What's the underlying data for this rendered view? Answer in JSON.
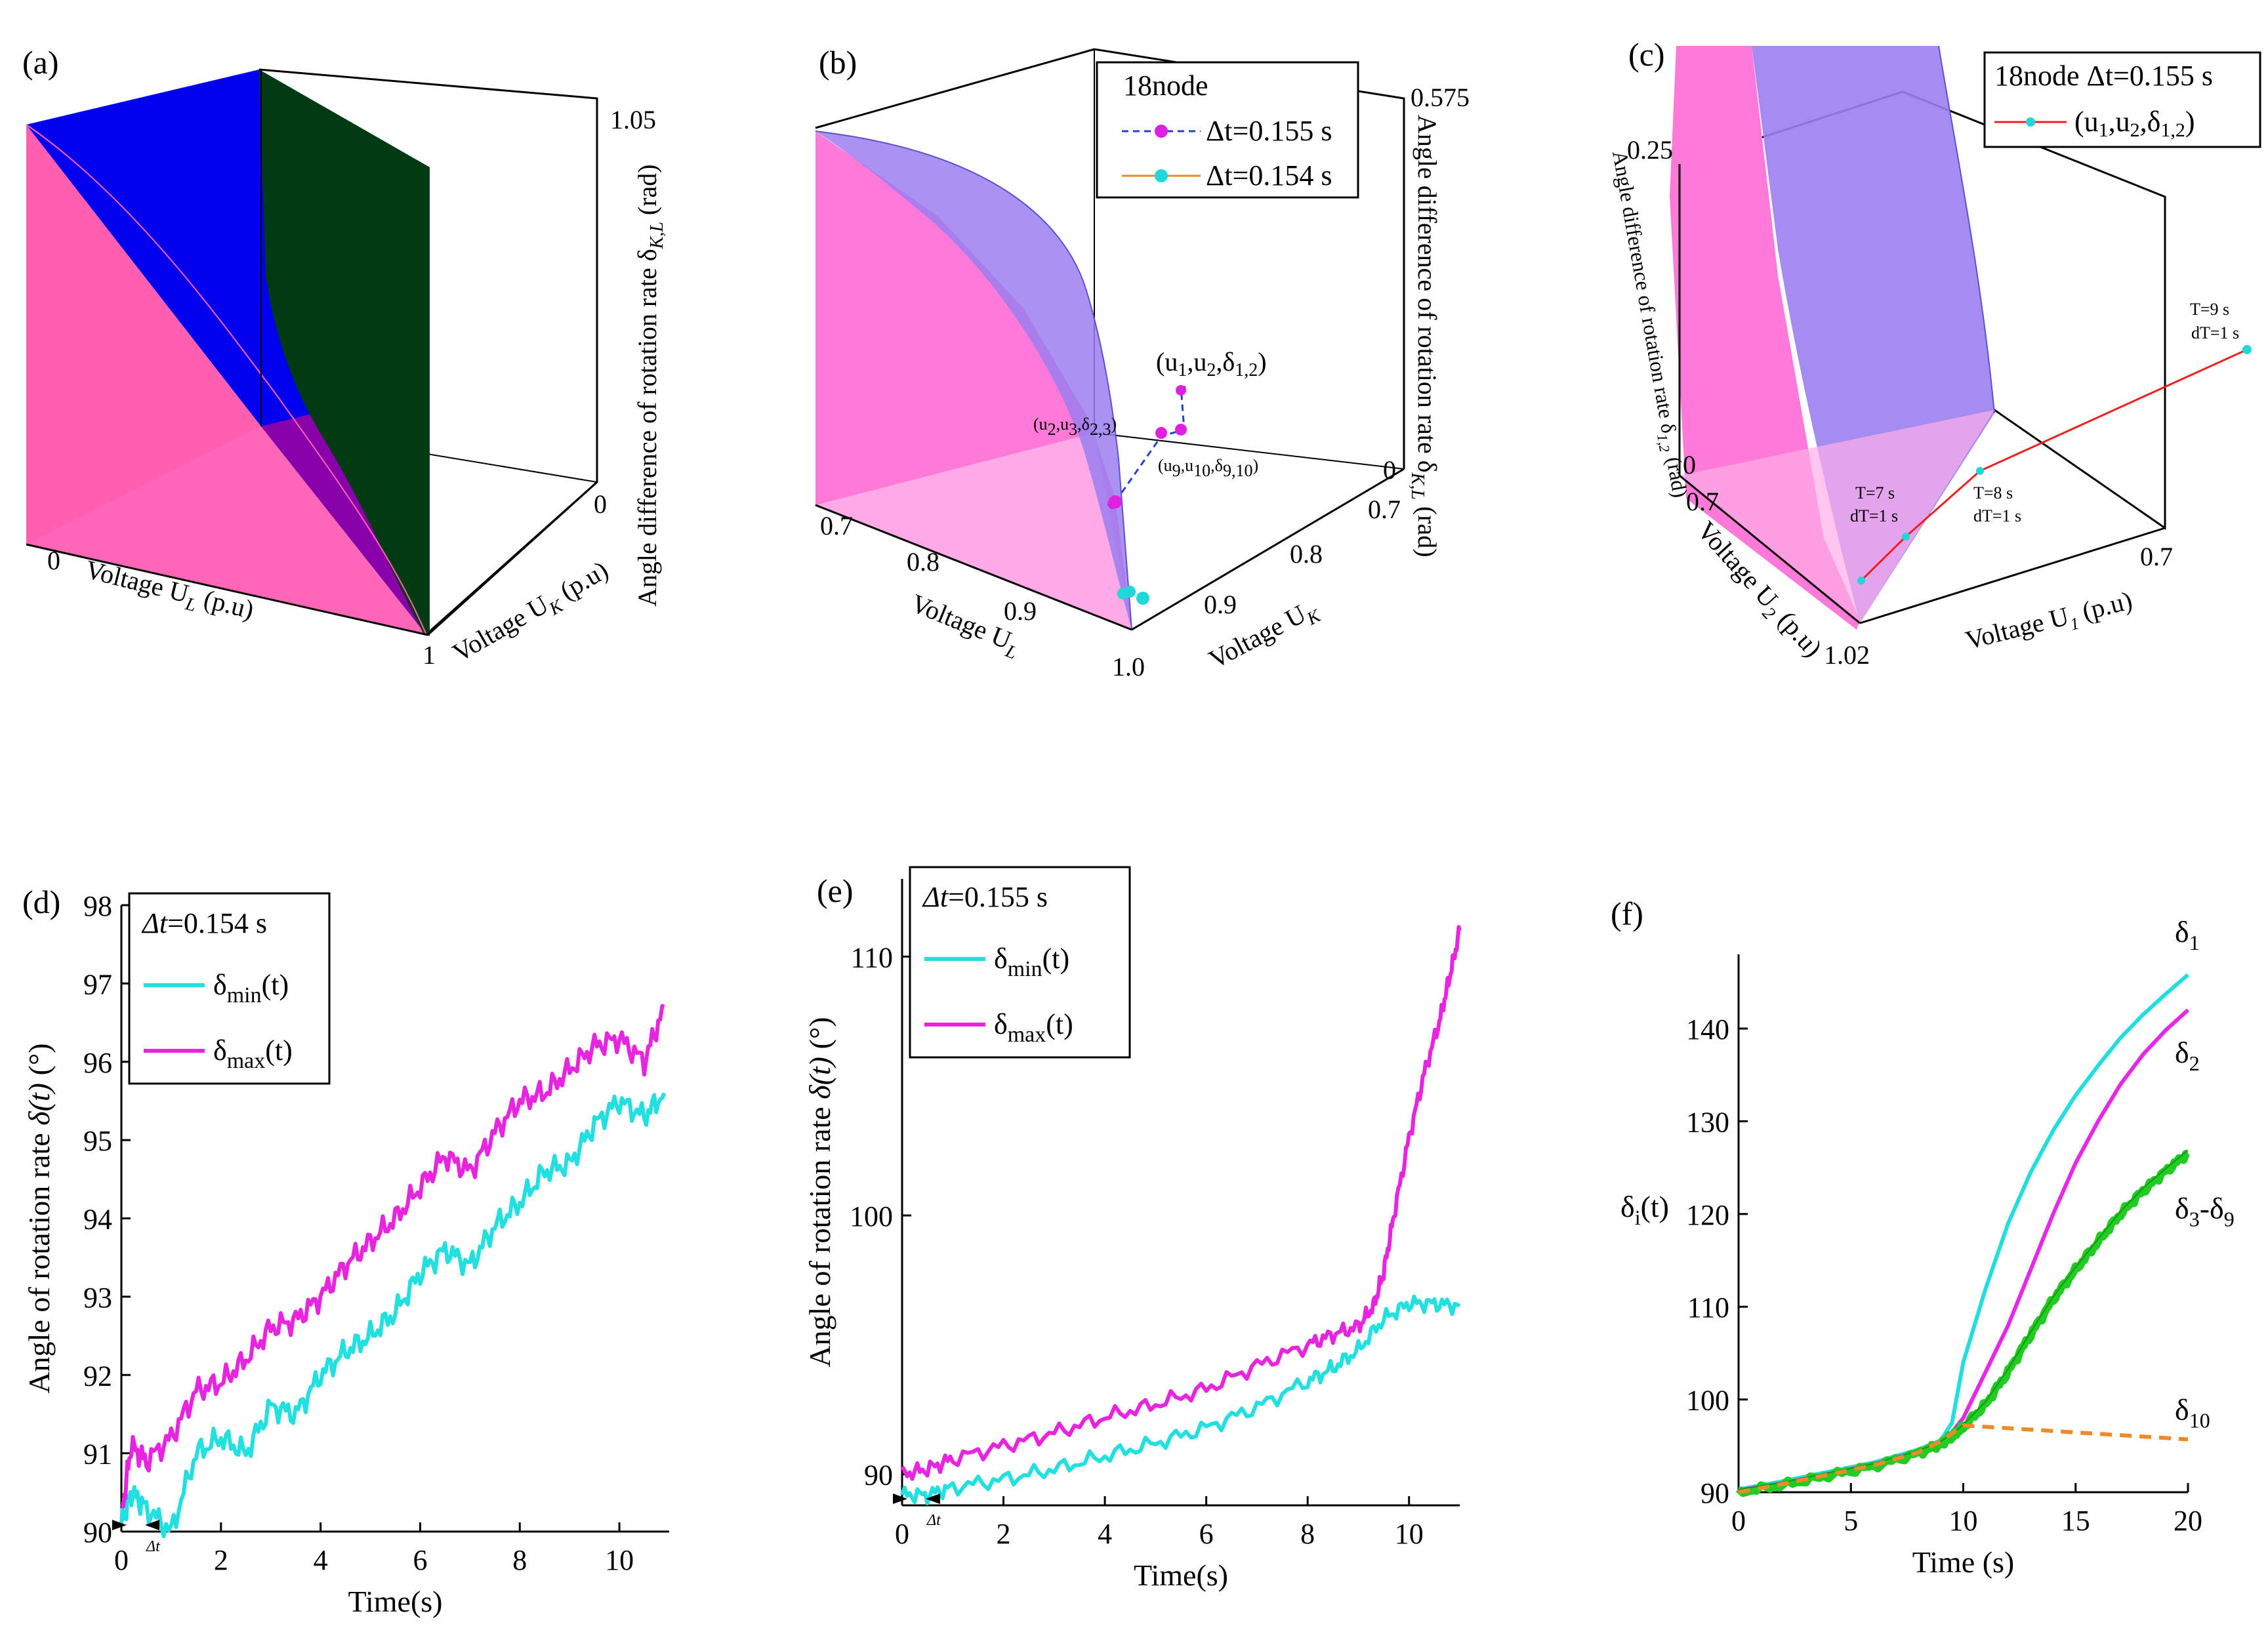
{
  "panels": {
    "a": {
      "label": "(a)",
      "zlabel": "Angle difference of rotation rate δ",
      "zlabel_sub": "K,L",
      "zlabel_unit": "(rad)",
      "xlabel": "Voltage U",
      "xlabel_sub": "L",
      "xlabel_unit": "(p.u)",
      "ylabel": "Voltage U",
      "ylabel_sub": "K",
      "ylabel_unit": "(p.u)",
      "z_top": "1.05",
      "x_min": "0",
      "x_max": "1",
      "y_min": "0"
    },
    "b": {
      "label": "(b)",
      "zlabel": "Angle difference of rotation rate δ",
      "zlabel_sub": "K,L",
      "zlabel_unit": "(rad)",
      "xlabel": "Voltage U",
      "xlabel_sub": "L",
      "ylabel": "Voltage U",
      "ylabel_sub": "K",
      "z_top": "0.575",
      "z_bot": "0",
      "x_ticks": [
        "0.7",
        "0.8",
        "0.9",
        "1.0"
      ],
      "y_ticks": [
        "0.9",
        "0.8",
        "0.7"
      ],
      "legend_title": "18node",
      "legend": [
        {
          "name": "Δt=0.155 s",
          "color": "#e020e0"
        },
        {
          "name": "Δt=0.154 s",
          "color": "#20d8d8"
        }
      ],
      "ann1": "(u",
      "ann1_parts": [
        "(u",
        "1",
        ",u",
        "2",
        ",δ",
        "1,2",
        ")"
      ],
      "ann2_parts": [
        "(u",
        "2",
        ",u",
        "3",
        ",δ",
        "2,3",
        ")"
      ],
      "ann3_parts": [
        "(u",
        "9",
        ",u",
        "10",
        ",δ",
        "9,10",
        ")"
      ]
    },
    "c": {
      "label": "(c)",
      "zlabel": "Angle difference of rotation rate δ",
      "zlabel_sub": "1,2",
      "zlabel_unit": "(rad)",
      "xlabel": "Voltage U",
      "xlabel_sub": "2",
      "xlabel_unit": "(p.u)",
      "ylabel": "Voltage U",
      "ylabel_sub": "1",
      "ylabel_unit": "(p.u)",
      "z_top": "0.25",
      "z_bot": "0",
      "x_top": "0.7",
      "x_bot": "1.02",
      "y_tick": "0.7",
      "legend_title": "18node Δt=0.155 s",
      "legend_parts": [
        "(u",
        "1",
        ",u",
        "2",
        ",δ",
        "1,2",
        ")"
      ],
      "pts": [
        {
          "t": "T=7 s",
          "dt": "dT=1 s"
        },
        {
          "t": "T=8 s",
          "dt": "dT=1 s"
        },
        {
          "t": "T=9 s",
          "dt": "dT=1 s"
        }
      ]
    },
    "d": {
      "label": "(d)"
    },
    "e": {
      "label": "(e)"
    },
    "f": {
      "label": "(f)"
    }
  },
  "chart_data": [
    {
      "id": "d",
      "type": "line",
      "legend_title": "Δt=0.154 s",
      "legend_title_parts": [
        "Δt",
        "=0.154 s"
      ],
      "xlabel": "Time(s)",
      "ylabel": "Angle of rotation rate δ(t) (°)",
      "ylabel_parts": [
        "Angle of rotation rate ",
        "δ(t)",
        " (°)"
      ],
      "xlim": [
        0,
        11
      ],
      "ylim": [
        90,
        98
      ],
      "x_ticks": [
        0,
        2,
        4,
        6,
        8,
        10
      ],
      "y_ticks": [
        90,
        91,
        92,
        93,
        94,
        95,
        96,
        97,
        98
      ],
      "marker_label": "Δt",
      "series": [
        {
          "name": "δmin(t)",
          "base": "δ",
          "sub": "min",
          "suffix": "(t)",
          "color": "#22e0e0",
          "x": [
            0,
            0.2,
            0.5,
            1.0,
            1.5,
            2.0,
            2.5,
            3.0,
            3.5,
            4.0,
            4.5,
            5.0,
            5.5,
            6.0,
            6.5,
            7.0,
            7.5,
            8.0,
            8.5,
            9.0,
            9.5,
            10.0,
            10.5,
            10.9
          ],
          "y": [
            90.1,
            90.5,
            90.3,
            90.0,
            91.0,
            91.2,
            91.0,
            91.6,
            91.5,
            92.0,
            92.3,
            92.5,
            92.8,
            93.3,
            93.6,
            93.4,
            93.9,
            94.2,
            94.6,
            94.7,
            95.2,
            95.5,
            95.3,
            95.6
          ]
        },
        {
          "name": "δmax(t)",
          "base": "δ",
          "sub": "max",
          "suffix": "(t)",
          "color": "#e824e0",
          "x": [
            0,
            0.2,
            0.5,
            1.0,
            1.5,
            2.0,
            2.5,
            3.0,
            3.5,
            4.0,
            4.5,
            5.0,
            5.5,
            6.0,
            6.5,
            7.0,
            7.5,
            8.0,
            8.5,
            9.0,
            9.5,
            10.0,
            10.5,
            10.9
          ],
          "y": [
            90.2,
            91.1,
            90.9,
            91.2,
            91.8,
            91.9,
            92.2,
            92.6,
            92.7,
            93.0,
            93.4,
            93.7,
            94.0,
            94.4,
            94.8,
            94.6,
            95.1,
            95.5,
            95.6,
            95.9,
            96.2,
            96.3,
            96.0,
            96.7
          ]
        }
      ]
    },
    {
      "id": "e",
      "type": "line",
      "legend_title": "Δt=0.155 s",
      "legend_title_parts": [
        "Δt",
        "=0.155 s"
      ],
      "xlabel": "Time(s)",
      "ylabel": "Angle of rotation rate δ(t) (°)",
      "ylabel_parts": [
        "Angle of rotation rate ",
        "δ(t)",
        " (°)"
      ],
      "xlim": [
        0,
        11
      ],
      "ylim": [
        88.8,
        113
      ],
      "x_ticks": [
        0,
        2,
        4,
        6,
        8,
        10
      ],
      "y_ticks": [
        90,
        100,
        110
      ],
      "marker_label": "Δt",
      "series": [
        {
          "name": "δmin(t)",
          "base": "δ",
          "sub": "min",
          "suffix": "(t)",
          "color": "#22e0e0",
          "x": [
            0,
            0.5,
            1.0,
            2.0,
            3.0,
            4.0,
            5.0,
            6.0,
            7.0,
            8.0,
            8.5,
            9.0,
            9.5,
            10.0,
            10.5,
            11.0
          ],
          "y": [
            89.2,
            89.2,
            89.5,
            89.8,
            90.2,
            90.7,
            91.2,
            91.8,
            92.6,
            93.6,
            94.1,
            94.8,
            96.0,
            96.6,
            96.6,
            96.5
          ]
        },
        {
          "name": "δmax(t)",
          "base": "δ",
          "sub": "max",
          "suffix": "(t)",
          "color": "#e824e0",
          "x": [
            0,
            0.5,
            1.0,
            2.0,
            3.0,
            4.0,
            5.0,
            6.0,
            7.0,
            8.0,
            8.5,
            9.0,
            9.3,
            9.5,
            9.7,
            10.0,
            10.3,
            10.6,
            10.8,
            11.0
          ],
          "y": [
            90.0,
            90.2,
            90.6,
            91.1,
            91.6,
            92.2,
            92.7,
            93.3,
            94.2,
            95.0,
            95.4,
            95.7,
            96.5,
            97.8,
            100.0,
            103.0,
            105.5,
            107.5,
            109.2,
            111.0
          ]
        }
      ]
    },
    {
      "id": "f",
      "type": "line",
      "xlabel": "Time (s)",
      "ylabel": "δi(t)",
      "ylabel_parts": [
        "δ",
        "i",
        "(t)"
      ],
      "xlim": [
        0,
        20
      ],
      "ylim": [
        90,
        148
      ],
      "x_ticks": [
        0,
        5,
        10,
        15,
        20
      ],
      "y_ticks": [
        90,
        100,
        110,
        120,
        130,
        140
      ],
      "series": [
        {
          "name": "δ1",
          "base": "δ",
          "sub": "1",
          "color": "#22dede",
          "x": [
            0,
            2,
            4,
            6,
            8,
            9,
            9.5,
            10,
            11,
            12,
            13,
            14,
            15,
            16,
            17,
            18,
            19,
            20
          ],
          "y": [
            90.3,
            91.2,
            92.2,
            93.2,
            94.6,
            95.6,
            97.5,
            104.0,
            112.0,
            119.0,
            124.5,
            129.0,
            132.8,
            136.0,
            139.0,
            141.5,
            143.7,
            145.8
          ]
        },
        {
          "name": "δ2",
          "base": "δ",
          "sub": "2",
          "color": "#e828e8",
          "x": [
            0,
            2,
            4,
            6,
            8,
            9,
            9.5,
            10,
            11,
            12,
            13,
            14,
            15,
            16,
            17,
            18,
            19,
            20
          ],
          "y": [
            90.2,
            91.0,
            92.0,
            93.0,
            94.4,
            95.4,
            96.5,
            98.0,
            103.0,
            108.0,
            114.0,
            120.0,
            125.5,
            130.0,
            134.0,
            137.2,
            139.8,
            142.0
          ]
        },
        {
          "name": "δ3-δ9",
          "base": "δ",
          "sub": "3",
          "mid": "-δ",
          "sub2": "9",
          "color": "#22cc22",
          "x": [
            0,
            2,
            4,
            6,
            8,
            9,
            9.5,
            10,
            11,
            12,
            13,
            14,
            15,
            16,
            17,
            18,
            19,
            20
          ],
          "y": [
            90.0,
            90.8,
            91.8,
            92.8,
            94.2,
            95.2,
            96.0,
            97.0,
            99.5,
            103.0,
            107.0,
            110.8,
            114.0,
            117.0,
            120.0,
            122.5,
            124.6,
            126.6
          ]
        },
        {
          "name": "δ10",
          "base": "δ",
          "sub": "10",
          "color": "#ee8a2a",
          "dashed": true,
          "x": [
            0,
            2,
            4,
            6,
            8,
            9,
            10,
            12,
            14,
            16,
            18,
            20
          ],
          "y": [
            90.0,
            90.9,
            91.9,
            92.9,
            94.3,
            95.5,
            97.2,
            96.9,
            96.6,
            96.3,
            96.0,
            95.7
          ]
        }
      ]
    }
  ]
}
